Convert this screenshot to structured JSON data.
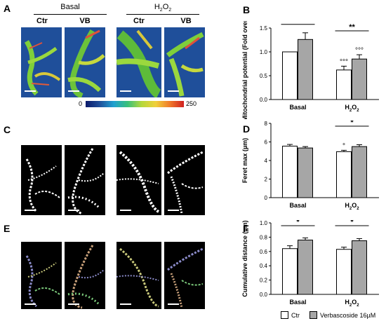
{
  "panels": {
    "A": "A",
    "B": "B",
    "C": "C",
    "D": "D",
    "E": "E",
    "F": "F"
  },
  "microscopy": {
    "group_basal": "Basal",
    "group_h2o2_prefix": "H",
    "group_h2o2_sub": "2",
    "group_h2o2_mid": "O",
    "group_h2o2_sub2": "2",
    "col_labels": [
      "Ctr",
      "VB",
      "Ctr",
      "VB"
    ],
    "colorbar_min": "0",
    "colorbar_max": "250"
  },
  "legend": {
    "ctr_label": "Ctr",
    "vb_label": "Verbascoside 16µM",
    "ctr_color": "#ffffff",
    "vb_color": "#a6a6a6"
  },
  "chart_data": [
    {
      "type": "bar",
      "panel": "B",
      "ylabel": "Mitochondrial potential (Fold over Ctr)",
      "categories": [
        "Basal",
        "H2O2"
      ],
      "series": [
        {
          "name": "Ctr",
          "values": [
            1.0,
            0.62
          ],
          "errors": [
            0.0,
            0.08
          ]
        },
        {
          "name": "Verbascoside 16µM",
          "values": [
            1.26,
            0.85
          ],
          "errors": [
            0.14,
            0.09
          ]
        }
      ],
      "ylim": [
        0.0,
        1.5
      ],
      "yticks": [
        "0.0",
        "0.5",
        "1.0",
        "1.5"
      ],
      "significance": [
        {
          "group": "Basal",
          "label": "***"
        },
        {
          "group": "H2O2",
          "label": "**"
        }
      ],
      "annotations": [
        {
          "group": "H2O2",
          "series": "Ctr",
          "label": "°°°"
        },
        {
          "group": "H2O2",
          "series": "Verbascoside 16µM",
          "label": "°°°"
        }
      ]
    },
    {
      "type": "bar",
      "panel": "D",
      "ylabel": "Feret max (µm)",
      "categories": [
        "Basal",
        "H2O2"
      ],
      "series": [
        {
          "name": "Ctr",
          "values": [
            5.55,
            4.95
          ],
          "errors": [
            0.18,
            0.15
          ]
        },
        {
          "name": "Verbascoside 16µM",
          "values": [
            5.35,
            5.5
          ],
          "errors": [
            0.15,
            0.2
          ]
        }
      ],
      "ylim": [
        0,
        8
      ],
      "yticks": [
        "0",
        "2",
        "4",
        "6",
        "8"
      ],
      "significance": [
        {
          "group": "H2O2",
          "label": "*"
        }
      ],
      "annotations": [
        {
          "group": "H2O2",
          "series": "Ctr",
          "label": "°"
        }
      ]
    },
    {
      "type": "bar",
      "panel": "F",
      "ylabel": "Cumulative distance (µm)",
      "categories": [
        "Basal",
        "H2O2"
      ],
      "series": [
        {
          "name": "Ctr",
          "values": [
            0.64,
            0.63
          ],
          "errors": [
            0.04,
            0.03
          ]
        },
        {
          "name": "Verbascoside 16µM",
          "values": [
            0.76,
            0.75
          ],
          "errors": [
            0.03,
            0.03
          ]
        }
      ],
      "ylim": [
        0.0,
        1.0
      ],
      "yticks": [
        "0.0",
        "0.2",
        "0.4",
        "0.6",
        "0.8",
        "1.0"
      ],
      "significance": [
        {
          "group": "Basal",
          "label": "*"
        },
        {
          "group": "H2O2",
          "label": "*"
        }
      ],
      "annotations": []
    }
  ]
}
